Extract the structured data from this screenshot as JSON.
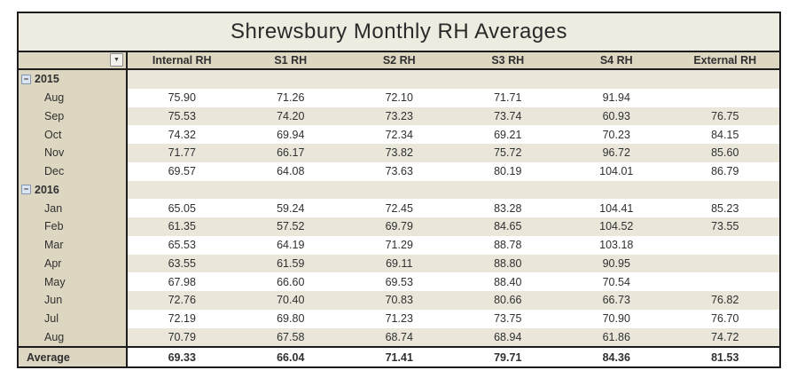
{
  "title": "Shrewsbury Monthly RH Averages",
  "header": {
    "filter_glyph": "▼",
    "columns": [
      "Internal RH",
      "S1 RH",
      "S2 RH",
      "S3 RH",
      "S4 RH",
      "External RH"
    ]
  },
  "collapse_glyph": "−",
  "rows": [
    {
      "type": "group",
      "shade": false,
      "label": "2015",
      "values": [
        "",
        "",
        "",
        "",
        "",
        ""
      ]
    },
    {
      "type": "month",
      "shade": false,
      "label": "Aug",
      "values": [
        "75.90",
        "71.26",
        "72.10",
        "71.71",
        "91.94",
        ""
      ]
    },
    {
      "type": "month",
      "shade": true,
      "label": "Sep",
      "values": [
        "75.53",
        "74.20",
        "73.23",
        "73.74",
        "60.93",
        "76.75"
      ]
    },
    {
      "type": "month",
      "shade": false,
      "label": "Oct",
      "values": [
        "74.32",
        "69.94",
        "72.34",
        "69.21",
        "70.23",
        "84.15"
      ]
    },
    {
      "type": "month",
      "shade": true,
      "label": "Nov",
      "values": [
        "71.77",
        "66.17",
        "73.82",
        "75.72",
        "96.72",
        "85.60"
      ]
    },
    {
      "type": "month",
      "shade": false,
      "label": "Dec",
      "values": [
        "69.57",
        "64.08",
        "73.63",
        "80.19",
        "104.01",
        "86.79"
      ]
    },
    {
      "type": "group",
      "shade": false,
      "label": "2016",
      "values": [
        "",
        "",
        "",
        "",
        "",
        ""
      ]
    },
    {
      "type": "month",
      "shade": false,
      "label": "Jan",
      "values": [
        "65.05",
        "59.24",
        "72.45",
        "83.28",
        "104.41",
        "85.23"
      ]
    },
    {
      "type": "month",
      "shade": true,
      "label": "Feb",
      "values": [
        "61.35",
        "57.52",
        "69.79",
        "84.65",
        "104.52",
        "73.55"
      ]
    },
    {
      "type": "month",
      "shade": false,
      "label": "Mar",
      "values": [
        "65.53",
        "64.19",
        "71.29",
        "88.78",
        "103.18",
        ""
      ]
    },
    {
      "type": "month",
      "shade": true,
      "label": "Apr",
      "values": [
        "63.55",
        "61.59",
        "69.11",
        "88.80",
        "90.95",
        ""
      ]
    },
    {
      "type": "month",
      "shade": false,
      "label": "May",
      "values": [
        "67.98",
        "66.60",
        "69.53",
        "88.40",
        "70.54",
        ""
      ]
    },
    {
      "type": "month",
      "shade": true,
      "label": "Jun",
      "values": [
        "72.76",
        "70.40",
        "70.83",
        "80.66",
        "66.73",
        "76.82"
      ]
    },
    {
      "type": "month",
      "shade": false,
      "label": "Jul",
      "values": [
        "72.19",
        "69.80",
        "71.23",
        "73.75",
        "70.90",
        "76.70"
      ]
    },
    {
      "type": "month",
      "shade": true,
      "label": "Aug",
      "values": [
        "70.79",
        "67.58",
        "68.74",
        "68.94",
        "61.86",
        "74.72"
      ]
    },
    {
      "type": "total",
      "shade": false,
      "label": "Average",
      "values": [
        "69.33",
        "66.04",
        "71.41",
        "79.71",
        "84.36",
        "81.53"
      ]
    }
  ],
  "colors": {
    "title_bg": "#eeebe0",
    "header_bg": "#ddd7c2",
    "stripe_bg": "#eae7da",
    "row_bg": "#ffffff",
    "border_dark": "#1c1c1c",
    "text": "#2f2f2f",
    "collapse_btn_bg": "#dce4f0",
    "collapse_btn_border": "#8096b4"
  }
}
